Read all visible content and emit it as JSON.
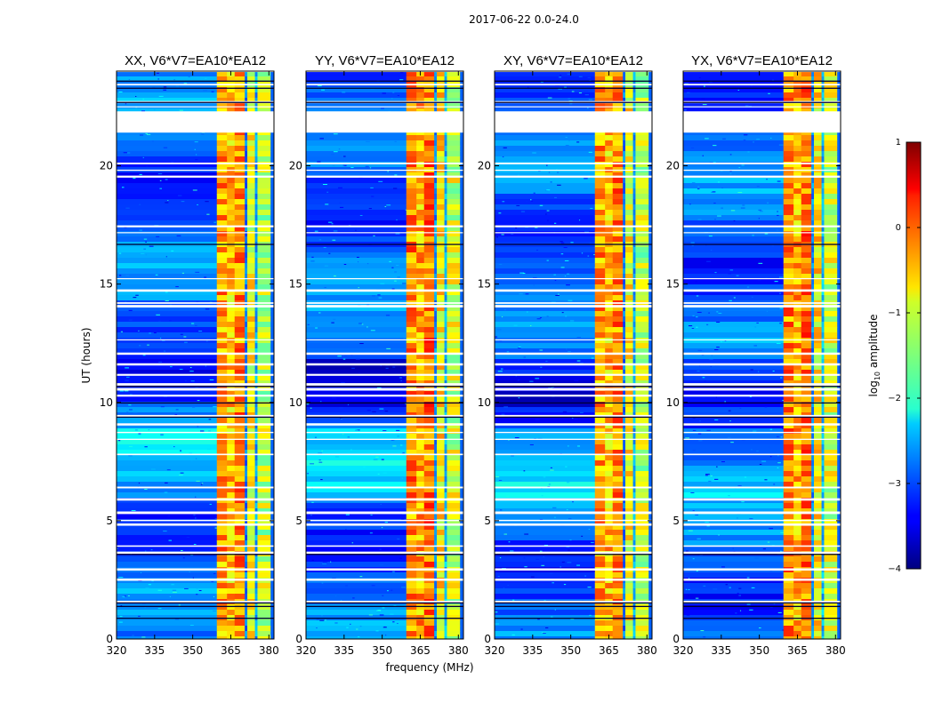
{
  "suptitle": "2017-06-22 0.0-24.0",
  "chart_data": {
    "type": "heatmap",
    "xlabel": "frequency (MHz)",
    "ylabel": "UT (hours)",
    "xlim": [
      320,
      382
    ],
    "ylim": [
      0,
      24
    ],
    "x_ticks": [
      "320",
      "335",
      "350",
      "365",
      "380"
    ],
    "y_ticks": [
      "0",
      "5",
      "10",
      "15",
      "20"
    ],
    "x_tick_values": [
      320,
      335,
      350,
      365,
      380
    ],
    "y_tick_values": [
      0,
      5,
      10,
      15,
      20
    ],
    "colormap": "jet",
    "colorbar": {
      "label": "log",
      "label_sub": "10",
      "label_rest": " amplitude",
      "range": [
        -4,
        1
      ],
      "ticks": [
        "1",
        "0",
        "−1",
        "−2",
        "−3",
        "−4"
      ],
      "tick_values": [
        1,
        0,
        -1,
        -2,
        -3,
        -4
      ]
    },
    "panels": [
      {
        "title": "XX, V6*V7=EA10*EA12",
        "pol": "XX"
      },
      {
        "title": "YY, V6*V7=EA10*EA12",
        "pol": "YY"
      },
      {
        "title": "XY, V6*V7=EA10*EA12",
        "pol": "XY"
      },
      {
        "title": "YX, V6*V7=EA10*EA12",
        "pol": "YX"
      }
    ],
    "rfi_band_mhz": [
      359.5,
      380.5
    ],
    "rfi_channels_mhz": [
      {
        "start": 359.5,
        "end": 363.5,
        "level": -0.4
      },
      {
        "start": 363.5,
        "end": 366.5,
        "level": -0.6
      },
      {
        "start": 366.5,
        "end": 370.5,
        "level": -0.3
      },
      {
        "start": 370.5,
        "end": 371.5,
        "level": -2.8
      },
      {
        "start": 371.5,
        "end": 374.5,
        "level": -0.9
      },
      {
        "start": 374.5,
        "end": 375.5,
        "level": -2.6
      },
      {
        "start": 375.5,
        "end": 380.5,
        "level": -1.2
      }
    ],
    "flagged_gaps_hours": [
      [
        21.4,
        22.3
      ]
    ]
  }
}
